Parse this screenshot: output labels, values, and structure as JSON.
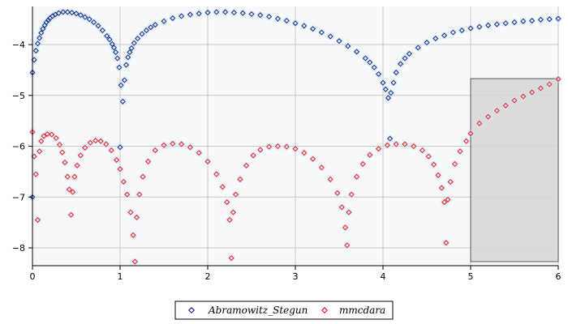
{
  "chart_data": {
    "type": "scatter",
    "xlim": [
      0,
      6
    ],
    "ylim": [
      -8.35,
      -3.25
    ],
    "x_ticks": [
      0,
      1,
      2,
      3,
      4,
      5,
      6
    ],
    "y_ticks": [
      -8,
      -7,
      -6,
      -5,
      -4
    ],
    "grid": true,
    "legend_position": "bottom-center",
    "colors": {
      "plot_bg": "#f7f8fa",
      "grid": "#c8c8c8",
      "axis": "#000000",
      "region_fill": "#d6d6d6",
      "region_stroke": "#555555",
      "halo": "#cfe3ee"
    },
    "shaded_region": {
      "x": [
        5.0,
        6.0
      ],
      "y": [
        -8.27,
        -4.67
      ]
    },
    "series": [
      {
        "name": "Abramowitz_Stegun",
        "color": "#1a2e8c",
        "marker": "diamond",
        "points": [
          [
            0.0,
            -4.55
          ],
          [
            0.02,
            -4.3
          ],
          [
            0.04,
            -4.12
          ],
          [
            0.06,
            -3.98
          ],
          [
            0.08,
            -3.87
          ],
          [
            0.1,
            -3.77
          ],
          [
            0.12,
            -3.69
          ],
          [
            0.14,
            -3.62
          ],
          [
            0.16,
            -3.56
          ],
          [
            0.18,
            -3.52
          ],
          [
            0.2,
            -3.48
          ],
          [
            0.23,
            -3.44
          ],
          [
            0.26,
            -3.41
          ],
          [
            0.3,
            -3.38
          ],
          [
            0.35,
            -3.36
          ],
          [
            0.4,
            -3.36
          ],
          [
            0.45,
            -3.37
          ],
          [
            0.5,
            -3.39
          ],
          [
            0.55,
            -3.42
          ],
          [
            0.6,
            -3.46
          ],
          [
            0.65,
            -3.5
          ],
          [
            0.7,
            -3.56
          ],
          [
            0.75,
            -3.63
          ],
          [
            0.8,
            -3.72
          ],
          [
            0.85,
            -3.83
          ],
          [
            0.88,
            -3.9
          ],
          [
            0.91,
            -3.99
          ],
          [
            0.93,
            -4.06
          ],
          [
            0.95,
            -4.15
          ],
          [
            0.97,
            -4.27
          ],
          [
            0.99,
            -4.45
          ],
          [
            1.01,
            -4.8
          ],
          [
            1.03,
            -5.12
          ],
          [
            1.05,
            -4.7
          ],
          [
            1.07,
            -4.4
          ],
          [
            1.09,
            -4.25
          ],
          [
            1.11,
            -4.15
          ],
          [
            1.13,
            -4.07
          ],
          [
            1.16,
            -3.97
          ],
          [
            1.2,
            -3.88
          ],
          [
            1.25,
            -3.79
          ],
          [
            1.3,
            -3.72
          ],
          [
            1.35,
            -3.66
          ],
          [
            1.4,
            -3.61
          ],
          [
            1.5,
            -3.54
          ],
          [
            1.6,
            -3.48
          ],
          [
            1.7,
            -3.44
          ],
          [
            1.8,
            -3.41
          ],
          [
            1.9,
            -3.39
          ],
          [
            2.0,
            -3.37
          ],
          [
            2.1,
            -3.36
          ],
          [
            2.2,
            -3.36
          ],
          [
            2.3,
            -3.37
          ],
          [
            2.4,
            -3.38
          ],
          [
            2.5,
            -3.4
          ],
          [
            2.6,
            -3.42
          ],
          [
            2.7,
            -3.45
          ],
          [
            2.8,
            -3.49
          ],
          [
            2.9,
            -3.53
          ],
          [
            3.0,
            -3.58
          ],
          [
            3.1,
            -3.63
          ],
          [
            3.2,
            -3.69
          ],
          [
            3.3,
            -3.76
          ],
          [
            3.4,
            -3.84
          ],
          [
            3.5,
            -3.93
          ],
          [
            3.6,
            -4.03
          ],
          [
            3.7,
            -4.14
          ],
          [
            3.8,
            -4.27
          ],
          [
            3.85,
            -4.35
          ],
          [
            3.9,
            -4.45
          ],
          [
            3.95,
            -4.58
          ],
          [
            4.0,
            -4.75
          ],
          [
            4.03,
            -4.88
          ],
          [
            4.06,
            -5.05
          ],
          [
            4.09,
            -4.95
          ],
          [
            4.12,
            -4.75
          ],
          [
            4.15,
            -4.55
          ],
          [
            4.2,
            -4.38
          ],
          [
            4.25,
            -4.27
          ],
          [
            4.3,
            -4.18
          ],
          [
            4.4,
            -4.06
          ],
          [
            4.5,
            -3.96
          ],
          [
            4.6,
            -3.88
          ],
          [
            4.7,
            -3.82
          ],
          [
            4.8,
            -3.76
          ],
          [
            4.9,
            -3.72
          ],
          [
            5.0,
            -3.68
          ],
          [
            5.1,
            -3.65
          ],
          [
            5.2,
            -3.62
          ],
          [
            5.3,
            -3.6
          ],
          [
            5.4,
            -3.58
          ],
          [
            5.5,
            -3.56
          ],
          [
            5.6,
            -3.54
          ],
          [
            5.7,
            -3.53
          ],
          [
            5.8,
            -3.51
          ],
          [
            5.9,
            -3.5
          ],
          [
            6.0,
            -3.49
          ],
          [
            0.0,
            -7.0
          ],
          [
            1.0,
            -6.02
          ],
          [
            4.08,
            -5.85
          ]
        ]
      },
      {
        "name": "mmcdara",
        "color": "#e8232a",
        "marker": "diamond",
        "points": [
          [
            0.0,
            -5.72
          ],
          [
            0.02,
            -6.2
          ],
          [
            0.04,
            -6.55
          ],
          [
            0.06,
            -7.45
          ],
          [
            0.08,
            -6.1
          ],
          [
            0.1,
            -5.9
          ],
          [
            0.13,
            -5.8
          ],
          [
            0.17,
            -5.76
          ],
          [
            0.22,
            -5.77
          ],
          [
            0.27,
            -5.84
          ],
          [
            0.31,
            -5.97
          ],
          [
            0.34,
            -6.12
          ],
          [
            0.37,
            -6.32
          ],
          [
            0.4,
            -6.6
          ],
          [
            0.42,
            -6.85
          ],
          [
            0.44,
            -7.35
          ],
          [
            0.46,
            -6.9
          ],
          [
            0.48,
            -6.6
          ],
          [
            0.51,
            -6.38
          ],
          [
            0.55,
            -6.18
          ],
          [
            0.6,
            -6.03
          ],
          [
            0.66,
            -5.93
          ],
          [
            0.72,
            -5.89
          ],
          [
            0.78,
            -5.9
          ],
          [
            0.84,
            -5.96
          ],
          [
            0.9,
            -6.08
          ],
          [
            0.96,
            -6.27
          ],
          [
            1.0,
            -6.45
          ],
          [
            1.04,
            -6.7
          ],
          [
            1.08,
            -6.95
          ],
          [
            1.12,
            -7.3
          ],
          [
            1.15,
            -7.75
          ],
          [
            1.17,
            -8.27
          ],
          [
            1.19,
            -7.4
          ],
          [
            1.22,
            -6.95
          ],
          [
            1.26,
            -6.6
          ],
          [
            1.32,
            -6.3
          ],
          [
            1.4,
            -6.08
          ],
          [
            1.5,
            -5.98
          ],
          [
            1.6,
            -5.95
          ],
          [
            1.7,
            -5.96
          ],
          [
            1.8,
            -6.02
          ],
          [
            1.9,
            -6.13
          ],
          [
            2.0,
            -6.3
          ],
          [
            2.1,
            -6.55
          ],
          [
            2.17,
            -6.8
          ],
          [
            2.22,
            -7.1
          ],
          [
            2.25,
            -7.45
          ],
          [
            2.27,
            -8.2
          ],
          [
            2.29,
            -7.3
          ],
          [
            2.32,
            -6.95
          ],
          [
            2.37,
            -6.65
          ],
          [
            2.44,
            -6.38
          ],
          [
            2.52,
            -6.18
          ],
          [
            2.6,
            -6.07
          ],
          [
            2.7,
            -6.01
          ],
          [
            2.8,
            -6.0
          ],
          [
            2.9,
            -6.01
          ],
          [
            3.0,
            -6.05
          ],
          [
            3.1,
            -6.13
          ],
          [
            3.2,
            -6.25
          ],
          [
            3.3,
            -6.42
          ],
          [
            3.4,
            -6.65
          ],
          [
            3.48,
            -6.92
          ],
          [
            3.53,
            -7.2
          ],
          [
            3.57,
            -7.6
          ],
          [
            3.59,
            -7.95
          ],
          [
            3.61,
            -7.3
          ],
          [
            3.64,
            -6.95
          ],
          [
            3.7,
            -6.6
          ],
          [
            3.77,
            -6.35
          ],
          [
            3.85,
            -6.17
          ],
          [
            3.95,
            -6.05
          ],
          [
            4.05,
            -5.98
          ],
          [
            4.15,
            -5.96
          ],
          [
            4.25,
            -5.96
          ],
          [
            4.35,
            -6.0
          ],
          [
            4.45,
            -6.08
          ],
          [
            4.52,
            -6.2
          ],
          [
            4.58,
            -6.36
          ],
          [
            4.63,
            -6.57
          ],
          [
            4.67,
            -6.82
          ],
          [
            4.7,
            -7.1
          ],
          [
            4.72,
            -7.9
          ],
          [
            4.74,
            -7.05
          ],
          [
            4.77,
            -6.7
          ],
          [
            4.82,
            -6.35
          ],
          [
            4.88,
            -6.1
          ],
          [
            4.95,
            -5.9
          ],
          [
            5.0,
            -5.75
          ],
          [
            5.1,
            -5.55
          ],
          [
            5.2,
            -5.42
          ],
          [
            5.3,
            -5.3
          ],
          [
            5.4,
            -5.2
          ],
          [
            5.5,
            -5.1
          ],
          [
            5.6,
            -5.02
          ],
          [
            5.7,
            -4.94
          ],
          [
            5.8,
            -4.86
          ],
          [
            5.9,
            -4.78
          ],
          [
            6.0,
            -4.68
          ]
        ]
      }
    ]
  }
}
